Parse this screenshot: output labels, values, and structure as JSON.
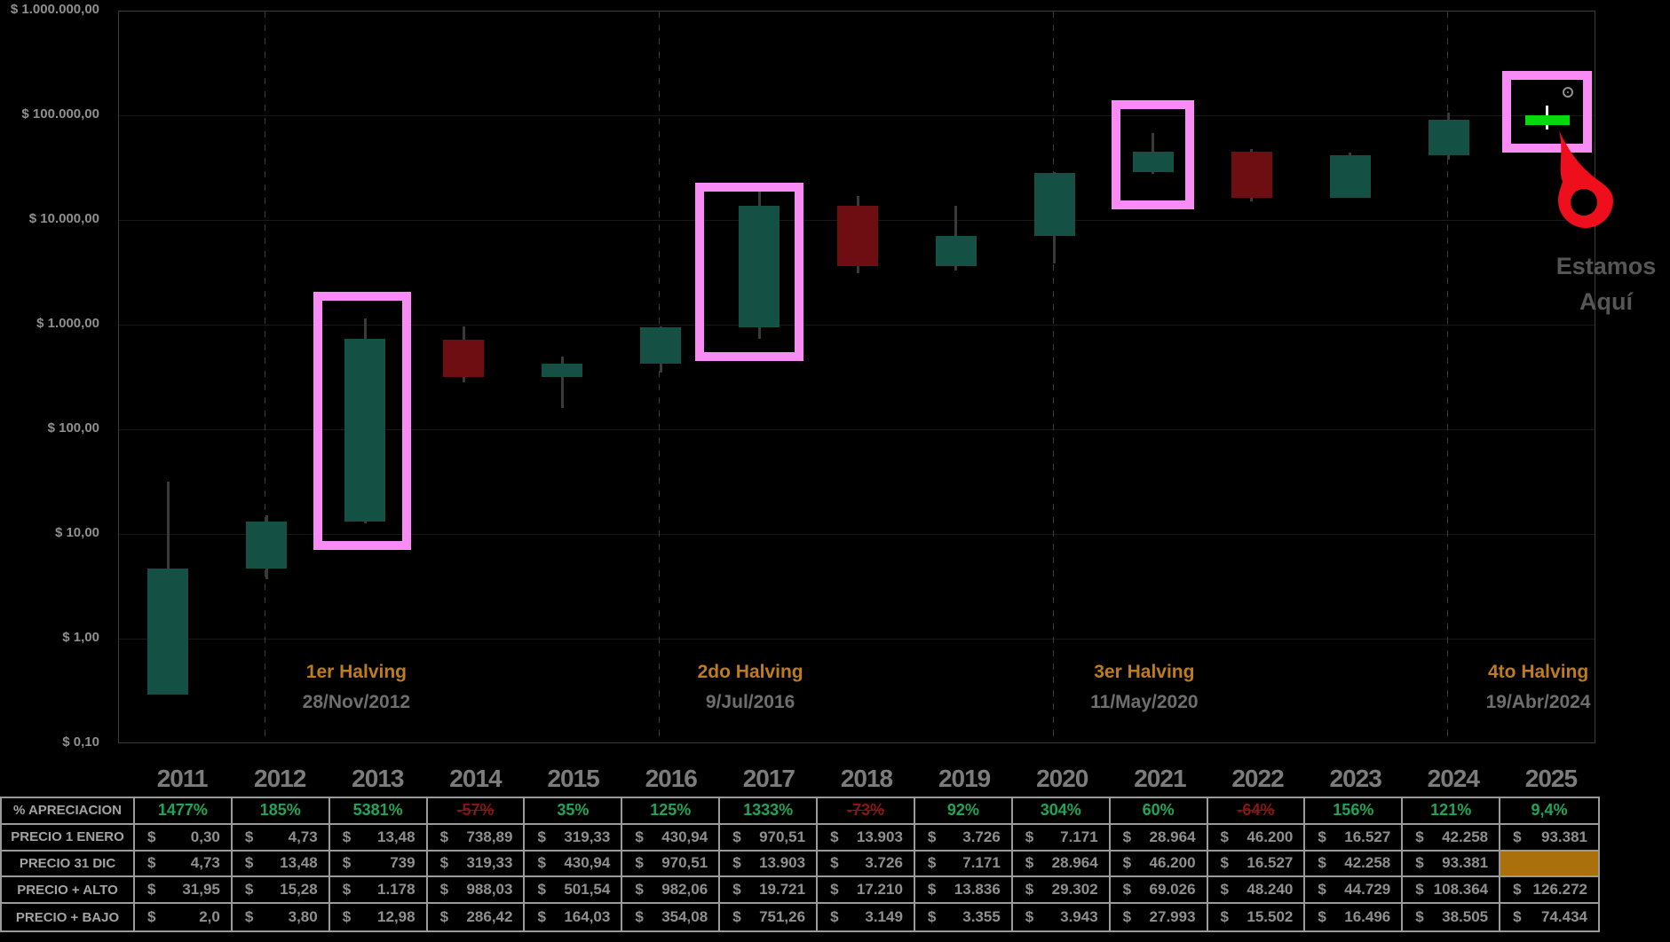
{
  "y_axis": {
    "labels": [
      "$ 1.000.000,00",
      "$ 100.000,00",
      "$ 10.000,00",
      "$ 1.000,00",
      "$ 100,00",
      "$ 10,00",
      "$ 1,00",
      "$ 0,10"
    ]
  },
  "chart_data": {
    "type": "candlestick",
    "title": "",
    "log_scale": true,
    "ylim": [
      0.1,
      1000000
    ],
    "categories": [
      "2011",
      "2012",
      "2013",
      "2014",
      "2015",
      "2016",
      "2017",
      "2018",
      "2019",
      "2020",
      "2021",
      "2022",
      "2023",
      "2024",
      "2025"
    ],
    "series": [
      {
        "year": "2011",
        "open": 0.3,
        "close": 4.73,
        "high": 31.95,
        "low": 2.0
      },
      {
        "year": "2012",
        "open": 4.73,
        "close": 13.48,
        "high": 15.28,
        "low": 3.8
      },
      {
        "year": "2013",
        "open": 13.48,
        "close": 739,
        "high": 1178,
        "low": 12.98
      },
      {
        "year": "2014",
        "open": 738.89,
        "close": 319.33,
        "high": 988.03,
        "low": 286.42
      },
      {
        "year": "2015",
        "open": 319.33,
        "close": 430.94,
        "high": 501.54,
        "low": 164.03
      },
      {
        "year": "2016",
        "open": 430.94,
        "close": 970.51,
        "high": 982.06,
        "low": 354.08
      },
      {
        "year": "2017",
        "open": 970.51,
        "close": 13903,
        "high": 19721,
        "low": 751.26
      },
      {
        "year": "2018",
        "open": 13903,
        "close": 3726,
        "high": 17210,
        "low": 3149
      },
      {
        "year": "2019",
        "open": 3726,
        "close": 7171,
        "high": 13836,
        "low": 3355
      },
      {
        "year": "2020",
        "open": 7171,
        "close": 28964,
        "high": 29302,
        "low": 3943
      },
      {
        "year": "2021",
        "open": 28964,
        "close": 46200,
        "high": 69026,
        "low": 27993
      },
      {
        "year": "2022",
        "open": 46200,
        "close": 16527,
        "high": 48240,
        "low": 15502
      },
      {
        "year": "2023",
        "open": 16527,
        "close": 42258,
        "high": 44729,
        "low": 16496
      },
      {
        "year": "2024",
        "open": 42258,
        "close": 93381,
        "high": 108364,
        "low": 38505
      },
      {
        "year": "2025",
        "open": 93381,
        "close": null,
        "high": 126272,
        "low": 74434,
        "current": true
      }
    ],
    "highlighted_years": [
      "2013",
      "2017",
      "2021",
      "2025"
    ]
  },
  "halvings": [
    {
      "title": "1er Halving",
      "date": "28/Nov/2012",
      "year": "2012"
    },
    {
      "title": "2do Halving",
      "date": "9/Jul/2016",
      "year": "2016"
    },
    {
      "title": "3er Halving",
      "date": "11/May/2020",
      "year": "2020"
    },
    {
      "title": "4to Halving",
      "date": "19/Abr/2024",
      "year": "2024"
    }
  ],
  "here_label": {
    "line1": "Estamos",
    "line2": "Aquí"
  },
  "table": {
    "rows": [
      {
        "label": "% APRECIACION",
        "type": "pct",
        "values": [
          "1477%",
          "185%",
          "5381%",
          "-57%",
          "35%",
          "125%",
          "1333%",
          "-73%",
          "92%",
          "304%",
          "60%",
          "-64%",
          "156%",
          "121%",
          "9,4%"
        ]
      },
      {
        "label": "PRECIO 1 ENERO",
        "type": "money",
        "values": [
          "0,30",
          "4,73",
          "13,48",
          "738,89",
          "319,33",
          "430,94",
          "970,51",
          "13.903",
          "3.726",
          "7.171",
          "28.964",
          "46.200",
          "16.527",
          "42.258",
          "93.381"
        ]
      },
      {
        "label": "PRECIO 31 DIC",
        "type": "money",
        "values": [
          "4,73",
          "13,48",
          "739",
          "319,33",
          "430,94",
          "970,51",
          "13.903",
          "3.726",
          "7.171",
          "28.964",
          "46.200",
          "16.527",
          "42.258",
          "93.381",
          null
        ]
      },
      {
        "label": "PRECIO + ALTO",
        "type": "money",
        "values": [
          "31,95",
          "15,28",
          "1.178",
          "988,03",
          "501,54",
          "982,06",
          "19.721",
          "17.210",
          "13.836",
          "29.302",
          "69.026",
          "48.240",
          "44.729",
          "108.364",
          "126.272"
        ]
      },
      {
        "label": "PRECIO + BAJO",
        "type": "money",
        "values": [
          "2,0",
          "3,80",
          "12,98",
          "286,42",
          "164,03",
          "354,08",
          "751,26",
          "3.149",
          "3.355",
          "3.943",
          "27.993",
          "15.502",
          "16.496",
          "38.505",
          "74.434"
        ]
      }
    ]
  },
  "colors": {
    "candle_up": "#155044",
    "candle_down": "#6e0d12",
    "wick": "#3a3a3a",
    "highlight_pink": "#f98bf4",
    "current_green": "#05d90c",
    "current_wick": "#efefef",
    "halving_title": "#bd7c1e",
    "halving_date": "#6e6e6e",
    "pct_positive": "#1fa558",
    "pct_negative": "#8e1313",
    "cell_highlight": "#a9700b",
    "pin_red": "#ee0e1c",
    "currency_symbol": "$"
  }
}
